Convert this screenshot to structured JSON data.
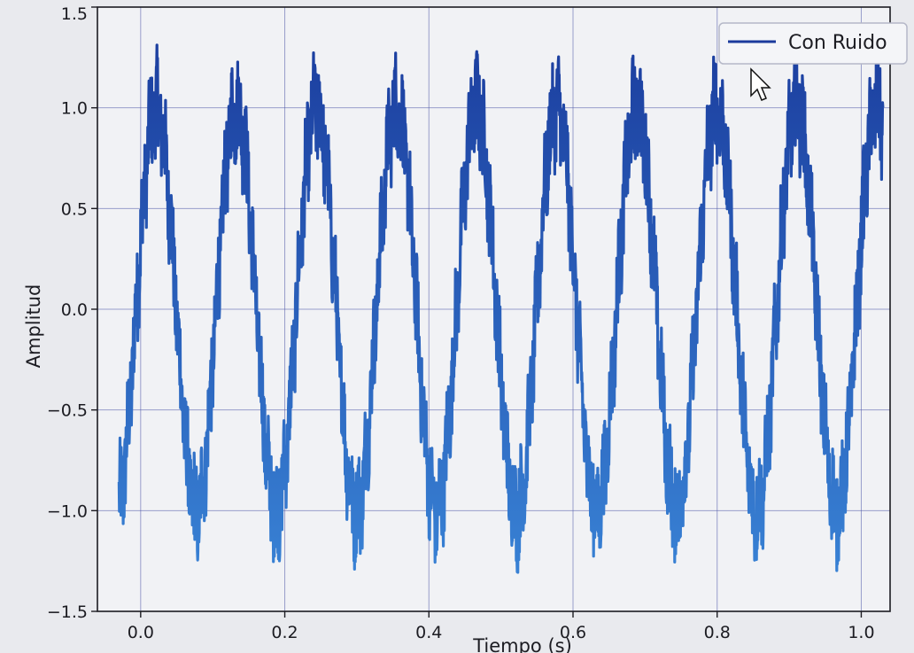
{
  "chart_data": {
    "type": "line",
    "xlabel": "Tiempo (s)",
    "ylabel": "Amplitud",
    "xlim": [
      -0.06,
      1.04
    ],
    "ylim": [
      -1.5,
      1.5
    ],
    "xticks": [
      0.0,
      0.2,
      0.4,
      0.6,
      0.8,
      1.0
    ],
    "xtick_labels": [
      "0.0",
      "0.2",
      "0.4",
      "0.6",
      "0.8",
      "1.0"
    ],
    "yticks": [
      1.5,
      1.0,
      0.5,
      0.0,
      -0.5,
      -1.0,
      -1.5
    ],
    "ytick_labels": [
      "1.5",
      "1.0",
      "0.5",
      "0.0",
      "−0.5",
      "−1.0",
      "−1.5"
    ],
    "grid": true,
    "legend_position": "top-right",
    "series": [
      {
        "name": "Con Ruido",
        "color": "#1a3a9c",
        "color_low": "#3a86d8",
        "frequency_hz": 9,
        "x_start": -0.03,
        "x_end": 1.03,
        "amplitude": 1.0,
        "noise_amplitude": 0.15,
        "max_observed": 1.38,
        "min_observed": -1.33
      }
    ]
  },
  "colors": {
    "background": "#e9eaee",
    "plot_background": "#f1f2f5",
    "grid": "#4f58a8",
    "axis": "#1c1c22"
  }
}
